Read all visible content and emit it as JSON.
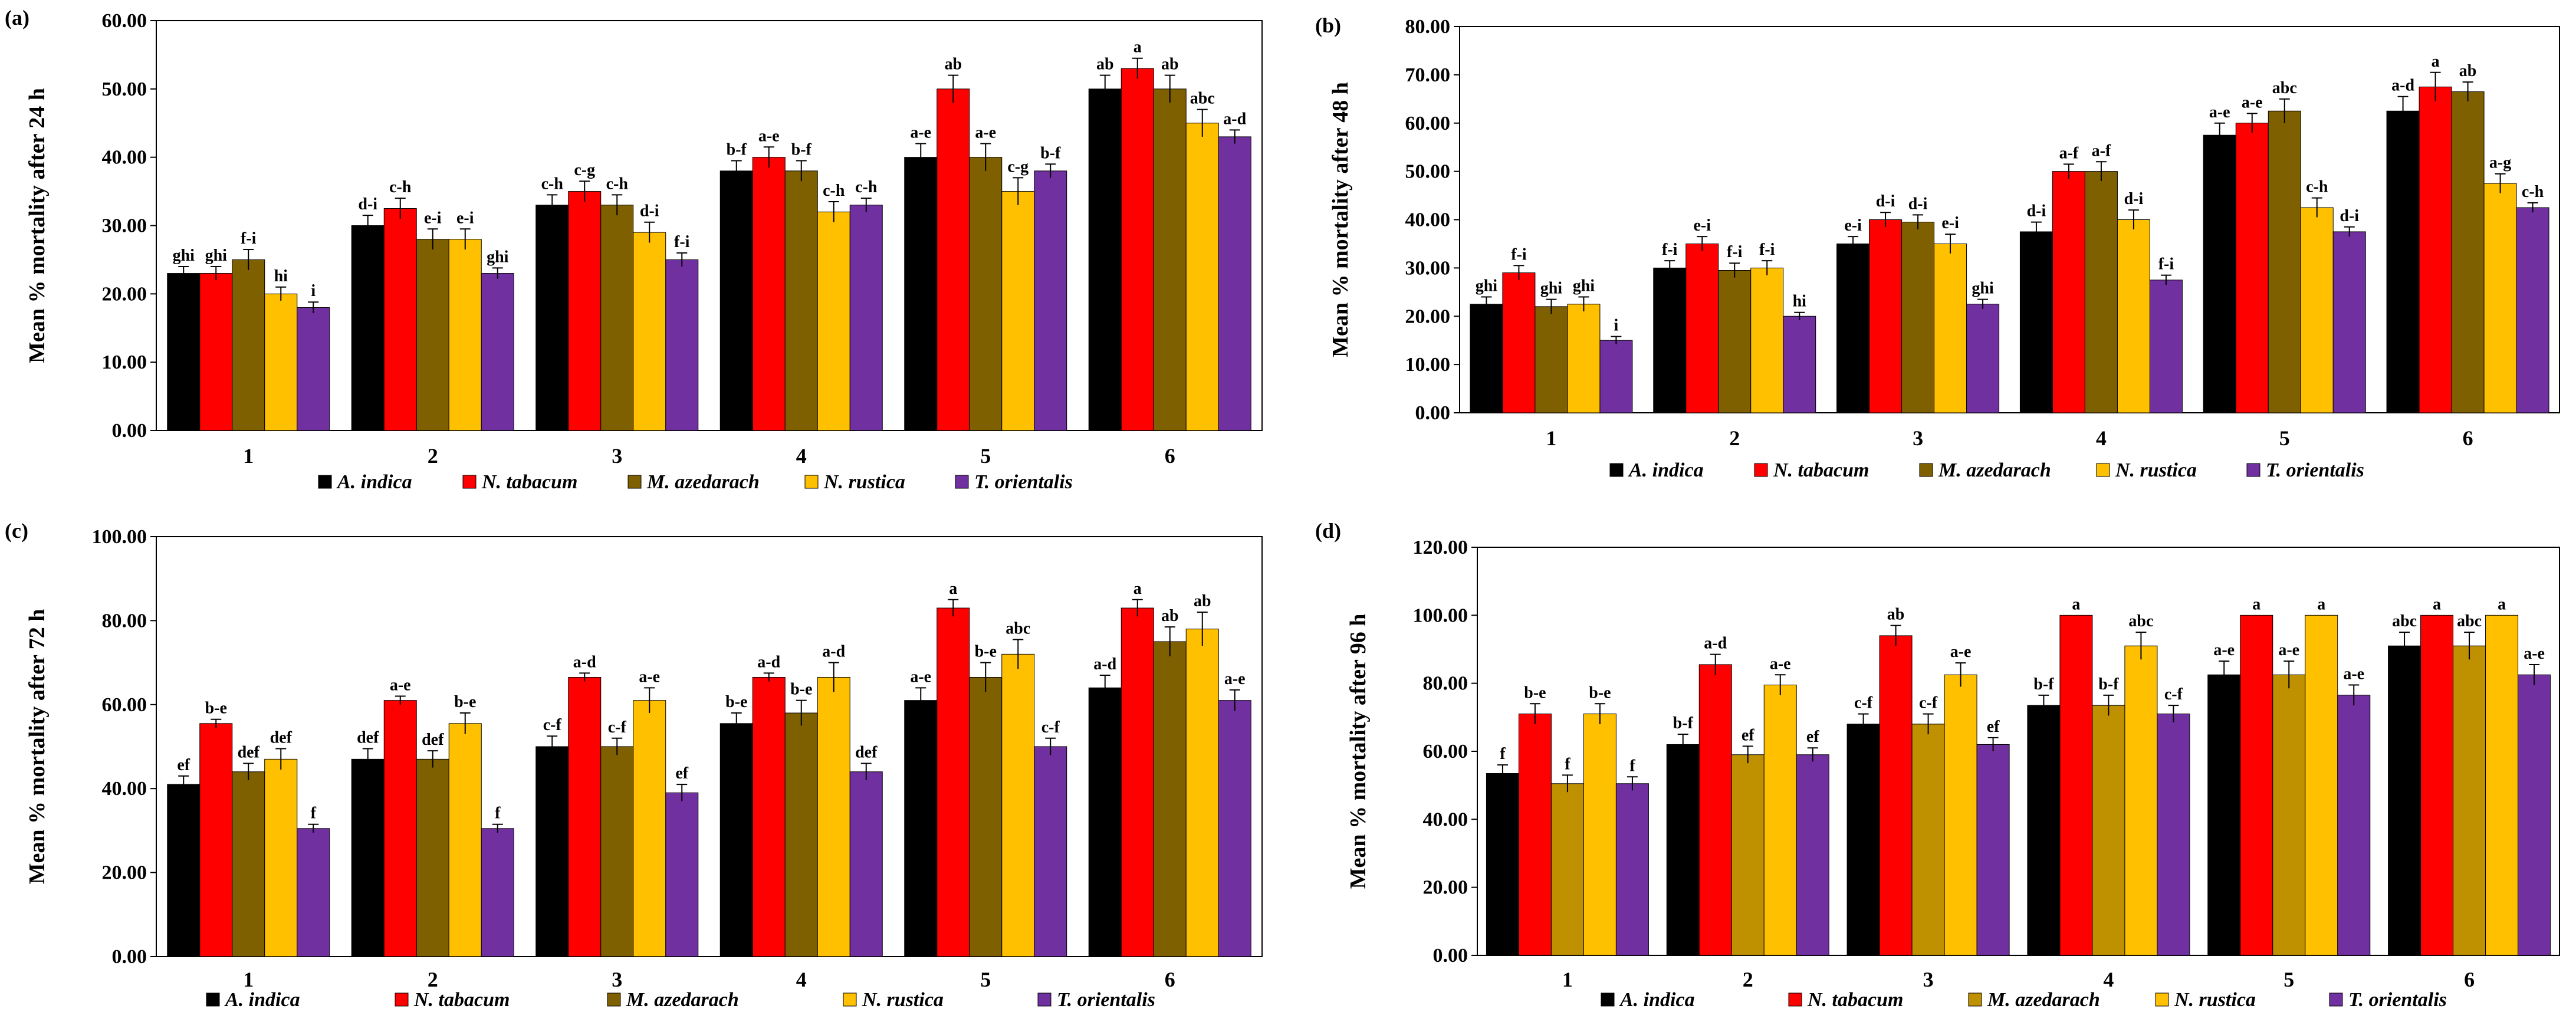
{
  "chart_data": [
    {
      "type": "bar",
      "panel_label": "(a)",
      "ylabel": "Mean % mortality after 24 h",
      "ylim": [
        0,
        60
      ],
      "ytick_step": 10,
      "ytick_labels": [
        "0.00",
        "10.00",
        "20.00",
        "30.00",
        "40.00",
        "50.00",
        "60.00"
      ],
      "categories": [
        "1",
        "2",
        "3",
        "4",
        "5",
        "6"
      ],
      "series": [
        {
          "name": "A. indica",
          "color": "#000000",
          "values": [
            23,
            30,
            33,
            38,
            40,
            50
          ],
          "errors": [
            1,
            1.5,
            1.5,
            1.5,
            2,
            2
          ],
          "labels": [
            "ghi",
            "d-i",
            "c-h",
            "b-f",
            "a-e",
            "ab"
          ]
        },
        {
          "name": "N. tabacum",
          "color": "#ff0000",
          "values": [
            23,
            32.5,
            35,
            40,
            50,
            53
          ],
          "errors": [
            1,
            1.5,
            1.5,
            1.5,
            2,
            1.5
          ],
          "labels": [
            "ghi",
            "c-h",
            "c-g",
            "a-e",
            "ab",
            "a"
          ]
        },
        {
          "name": "M. azedarach",
          "color": "#7f6000",
          "values": [
            25,
            28,
            33,
            38,
            40,
            50
          ],
          "errors": [
            1.5,
            1.5,
            1.5,
            1.5,
            2,
            2
          ],
          "labels": [
            "f-i",
            "e-i",
            "c-h",
            "b-f",
            "a-e",
            "ab"
          ]
        },
        {
          "name": "N. rustica",
          "color": "#ffc000",
          "values": [
            20,
            28,
            29,
            32,
            35,
            45
          ],
          "errors": [
            1,
            1.5,
            1.5,
            1.5,
            2,
            2
          ],
          "labels": [
            "hi",
            "e-i",
            "d-i",
            "c-h",
            "c-g",
            "abc"
          ]
        },
        {
          "name": "T. orientalis",
          "color": "#7030a0",
          "values": [
            18,
            23,
            25,
            33,
            38,
            43
          ],
          "errors": [
            0.8,
            0.8,
            1,
            1,
            1,
            1
          ],
          "labels": [
            "i",
            "ghi",
            "f-i",
            "c-h",
            "b-f",
            "a-d"
          ]
        }
      ]
    },
    {
      "type": "bar",
      "panel_label": "(b)",
      "ylabel": "Mean % mortality after 48 h",
      "ylim": [
        0,
        80
      ],
      "ytick_step": 10,
      "ytick_labels": [
        "0.00",
        "10.00",
        "20.00",
        "30.00",
        "40.00",
        "50.00",
        "60.00",
        "70.00",
        "80.00"
      ],
      "categories": [
        "1",
        "2",
        "3",
        "4",
        "5",
        "6"
      ],
      "series": [
        {
          "name": "A. indica",
          "color": "#000000",
          "values": [
            22.5,
            30,
            35,
            37.5,
            57.5,
            62.5
          ],
          "errors": [
            1.5,
            1.5,
            1.5,
            2,
            2.5,
            3
          ],
          "labels": [
            "ghi",
            "f-i",
            "e-i",
            "d-i",
            "a-e",
            "a-d"
          ]
        },
        {
          "name": "N. tabacum",
          "color": "#ff0000",
          "values": [
            29,
            35,
            40,
            50,
            60,
            67.5
          ],
          "errors": [
            1.5,
            1.5,
            1.5,
            1.5,
            2,
            3
          ],
          "labels": [
            "f-i",
            "e-i",
            "d-i",
            "a-f",
            "a-e",
            "a"
          ]
        },
        {
          "name": "M. azedarach",
          "color": "#7f6000",
          "values": [
            22,
            29.5,
            39.5,
            50,
            62.5,
            66.5
          ],
          "errors": [
            1.5,
            1.5,
            1.5,
            2,
            2.5,
            2
          ],
          "labels": [
            "ghi",
            "f-i",
            "d-i",
            "a-f",
            "abc",
            "ab"
          ]
        },
        {
          "name": "N. rustica",
          "color": "#ffc000",
          "values": [
            22.5,
            30,
            35,
            40,
            42.5,
            47.5
          ],
          "errors": [
            1.5,
            1.5,
            2,
            2,
            2,
            2
          ],
          "labels": [
            "ghi",
            "f-i",
            "e-i",
            "d-i",
            "c-h",
            "a-g"
          ]
        },
        {
          "name": "T. orientalis",
          "color": "#7030a0",
          "values": [
            15,
            20,
            22.5,
            27.5,
            37.5,
            42.5
          ],
          "errors": [
            0.8,
            0.8,
            1,
            1,
            1,
            1
          ],
          "labels": [
            "i",
            "hi",
            "ghi",
            "f-i",
            "d-i",
            "c-h"
          ]
        }
      ]
    },
    {
      "type": "bar",
      "panel_label": "(c)",
      "ylabel": "Mean % mortality after 72 h",
      "ylim": [
        0,
        100
      ],
      "ytick_step": 20,
      "ytick_labels": [
        "0.00",
        "20.00",
        "40.00",
        "60.00",
        "80.00",
        "100.00"
      ],
      "categories": [
        "1",
        "2",
        "3",
        "4",
        "5",
        "6"
      ],
      "series": [
        {
          "name": "A. indica",
          "color": "#000000",
          "values": [
            41,
            47,
            50,
            55.5,
            61,
            64
          ],
          "errors": [
            2,
            2.5,
            2.5,
            2.5,
            3,
            3
          ],
          "labels": [
            "ef",
            "def",
            "c-f",
            "b-e",
            "a-e",
            "a-d"
          ]
        },
        {
          "name": "N. tabacum",
          "color": "#ff0000",
          "values": [
            55.5,
            61,
            66.5,
            66.5,
            83,
            83
          ],
          "errors": [
            1,
            1,
            1,
            1,
            2,
            2
          ],
          "labels": [
            "b-e",
            "a-e",
            "a-d",
            "a-d",
            "a",
            "a"
          ]
        },
        {
          "name": "M. azedarach",
          "color": "#7f6000",
          "values": [
            44,
            47,
            50,
            58,
            66.5,
            75
          ],
          "errors": [
            2,
            2,
            2,
            3,
            3.5,
            3.5
          ],
          "labels": [
            "def",
            "def",
            "c-f",
            "b-e",
            "b-e",
            "ab"
          ]
        },
        {
          "name": "N. rustica",
          "color": "#ffc000",
          "values": [
            47,
            55.5,
            61,
            66.5,
            72,
            78
          ],
          "errors": [
            2.5,
            2.5,
            3,
            3.5,
            3.5,
            4
          ],
          "labels": [
            "def",
            "b-e",
            "a-e",
            "a-d",
            "abc",
            "ab"
          ]
        },
        {
          "name": "T. orientalis",
          "color": "#7030a0",
          "values": [
            30.5,
            30.5,
            39,
            44,
            50,
            61
          ],
          "errors": [
            1,
            1,
            2,
            2,
            2,
            2.5
          ],
          "labels": [
            "f",
            "f",
            "ef",
            "def",
            "c-f",
            "a-e"
          ]
        }
      ]
    },
    {
      "type": "bar",
      "panel_label": "(d)",
      "ylabel": "Mean % mortality after 96 h",
      "ylim": [
        0,
        120
      ],
      "ytick_step": 20,
      "ytick_labels": [
        "0.00",
        "20.00",
        "40.00",
        "60.00",
        "80.00",
        "100.00",
        "120.00"
      ],
      "categories": [
        "1",
        "2",
        "3",
        "4",
        "5",
        "6"
      ],
      "series": [
        {
          "name": "A. indica",
          "color": "#000000",
          "values": [
            53.5,
            62,
            68,
            73.5,
            82.5,
            91
          ],
          "errors": [
            2.5,
            3,
            3,
            3,
            4,
            4
          ],
          "labels": [
            "f",
            "b-f",
            "c-f",
            "b-f",
            "a-e",
            "abc"
          ]
        },
        {
          "name": "N. tabacum",
          "color": "#ff0000",
          "values": [
            71,
            85.5,
            94,
            100,
            100,
            100
          ],
          "errors": [
            3,
            3,
            3,
            0,
            0,
            0
          ],
          "labels": [
            "b-e",
            "a-d",
            "ab",
            "a",
            "a",
            "a"
          ]
        },
        {
          "name": "M. azedarach",
          "color": "#bf9000",
          "values": [
            50.5,
            59,
            68,
            73.5,
            82.5,
            91
          ],
          "errors": [
            2.5,
            2.5,
            3,
            3,
            4,
            4
          ],
          "labels": [
            "f",
            "ef",
            "c-f",
            "b-f",
            "a-e",
            "abc"
          ]
        },
        {
          "name": "N. rustica",
          "color": "#ffc000",
          "values": [
            71,
            79.5,
            82.5,
            91,
            100,
            100
          ],
          "errors": [
            3,
            3,
            3.5,
            4,
            0,
            0
          ],
          "labels": [
            "b-e",
            "a-e",
            "a-e",
            "abc",
            "a",
            "a"
          ]
        },
        {
          "name": "T. orientalis",
          "color": "#7030a0",
          "values": [
            50.5,
            59,
            62,
            71,
            76.5,
            82.5
          ],
          "errors": [
            2,
            2,
            2,
            2.5,
            3,
            3
          ],
          "labels": [
            "f",
            "ef",
            "ef",
            "c-f",
            "a-e",
            "a-e"
          ]
        }
      ]
    }
  ]
}
